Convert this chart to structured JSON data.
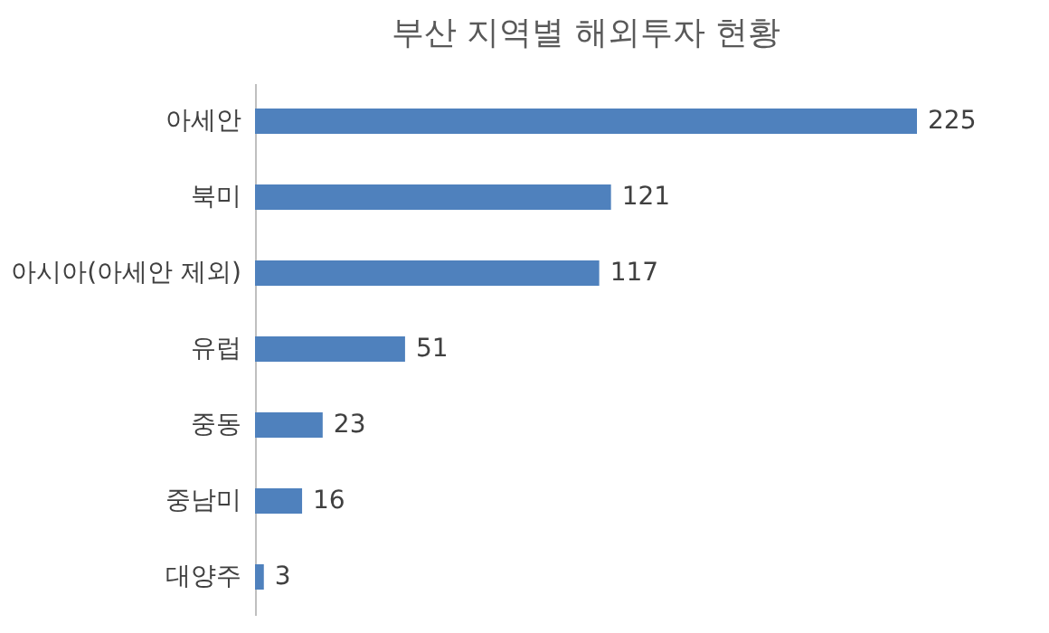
{
  "chart_data": {
    "type": "bar",
    "orientation": "horizontal",
    "title": "부산 지역별 해외투자 현황",
    "categories": [
      "아세안",
      "북미",
      "아시아(아세안 제외)",
      "유럽",
      "중동",
      "중남미",
      "대양주"
    ],
    "values": [
      225,
      121,
      117,
      51,
      23,
      16,
      3
    ],
    "color": "#4f81bd",
    "data_labels": true,
    "grid": false,
    "tick_labels": "y"
  }
}
